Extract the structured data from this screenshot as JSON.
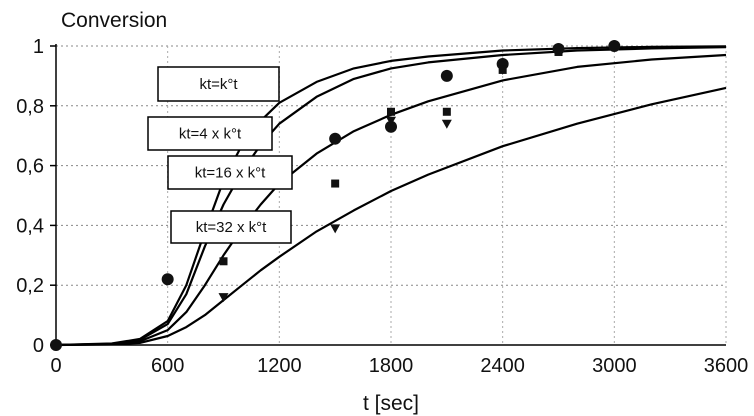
{
  "chart_data": {
    "type": "line",
    "ylabel": "Conversion",
    "xlabel": "t [sec]",
    "xlim": [
      0,
      3600
    ],
    "ylim": [
      0,
      1
    ],
    "xticks": [
      0,
      600,
      1200,
      1800,
      2400,
      3000,
      3600
    ],
    "yticks": [
      0,
      0.2,
      0.4,
      0.6,
      0.8,
      1
    ],
    "ytick_labels": [
      "0",
      "0,2",
      "0,4",
      "0,6",
      "0,8",
      "1"
    ],
    "grid": "dotted",
    "series": [
      {
        "name": "kt=k°t",
        "x": [
          0,
          300,
          450,
          600,
          700,
          800,
          900,
          1000,
          1100,
          1200,
          1400,
          1600,
          1800,
          2000,
          2400,
          2800,
          3200,
          3600
        ],
        "y": [
          0,
          0.005,
          0.02,
          0.08,
          0.2,
          0.38,
          0.55,
          0.67,
          0.75,
          0.81,
          0.88,
          0.925,
          0.95,
          0.965,
          0.985,
          0.993,
          0.997,
          0.999
        ]
      },
      {
        "name": "kt=4 x k°t",
        "x": [
          0,
          300,
          450,
          600,
          700,
          800,
          900,
          1000,
          1100,
          1200,
          1400,
          1600,
          1800,
          2000,
          2400,
          2800,
          3200,
          3600
        ],
        "y": [
          0,
          0.004,
          0.017,
          0.07,
          0.17,
          0.33,
          0.47,
          0.58,
          0.67,
          0.74,
          0.83,
          0.89,
          0.925,
          0.945,
          0.97,
          0.985,
          0.992,
          0.996
        ]
      },
      {
        "name": "kt=16 x k°t",
        "x": [
          0,
          300,
          450,
          600,
          700,
          800,
          900,
          1000,
          1100,
          1200,
          1400,
          1600,
          1800,
          2000,
          2400,
          2800,
          3200,
          3600
        ],
        "y": [
          0,
          0.003,
          0.012,
          0.05,
          0.11,
          0.2,
          0.3,
          0.39,
          0.47,
          0.54,
          0.64,
          0.715,
          0.77,
          0.815,
          0.885,
          0.93,
          0.955,
          0.97
        ]
      },
      {
        "name": "kt=32 x k°t",
        "x": [
          0,
          300,
          450,
          600,
          700,
          800,
          900,
          1000,
          1100,
          1200,
          1400,
          1600,
          1800,
          2000,
          2400,
          2800,
          3200,
          3600
        ],
        "y": [
          0,
          0.002,
          0.007,
          0.03,
          0.06,
          0.1,
          0.15,
          0.2,
          0.25,
          0.295,
          0.38,
          0.45,
          0.515,
          0.57,
          0.665,
          0.74,
          0.805,
          0.86
        ]
      }
    ],
    "markers": [
      {
        "shape": "circle",
        "x": [
          0,
          600,
          1500,
          1800,
          2100,
          2400,
          2700,
          3000
        ],
        "y": [
          0,
          0.22,
          0.69,
          0.73,
          0.9,
          0.94,
          0.99,
          1.0
        ]
      },
      {
        "shape": "square",
        "x": [
          900,
          1500,
          1800,
          2100,
          2400,
          2700
        ],
        "y": [
          0.28,
          0.54,
          0.78,
          0.78,
          0.92,
          0.98
        ]
      },
      {
        "shape": "triangle",
        "x": [
          900,
          1500,
          1800,
          2100,
          2400,
          2700
        ],
        "y": [
          0.16,
          0.39,
          0.75,
          0.74,
          0.92,
          0.99
        ]
      }
    ]
  }
}
